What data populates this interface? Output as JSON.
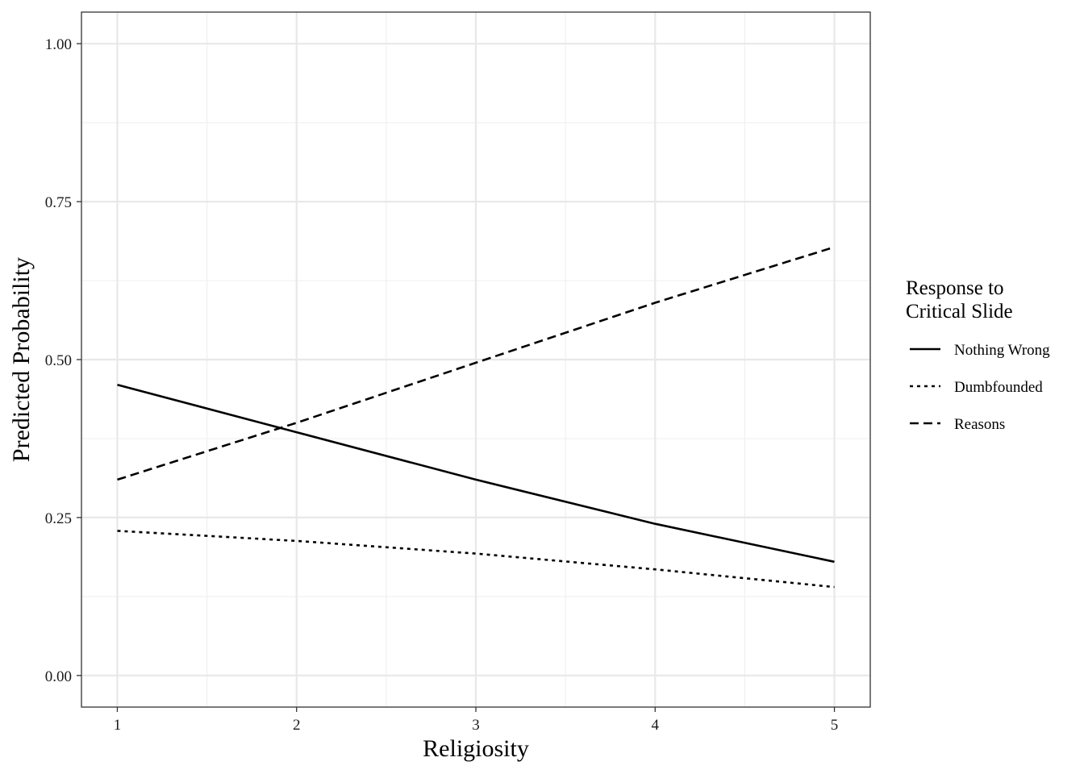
{
  "chart_data": {
    "type": "line",
    "xlabel": "Religiosity",
    "ylabel": "Predicted Probability",
    "xlim": [
      0.8,
      5.2
    ],
    "ylim": [
      -0.05,
      1.05
    ],
    "x_ticks": [
      1,
      2,
      3,
      4,
      5
    ],
    "y_ticks": [
      0,
      0.25,
      0.5,
      0.75,
      1
    ],
    "y_tick_labels": [
      "0.00",
      "0.25",
      "0.50",
      "0.75",
      "1.00"
    ],
    "x_tick_labels": [
      "1",
      "2",
      "3",
      "4",
      "5"
    ],
    "grid": true,
    "legend_position": "right",
    "legend_title": [
      "Response to",
      "Critical Slide"
    ],
    "series": [
      {
        "name": "Nothing Wrong",
        "linestyle": "solid",
        "color": "#000000",
        "x": [
          1,
          2,
          3,
          4,
          5
        ],
        "y": [
          0.46,
          0.385,
          0.31,
          0.24,
          0.18
        ]
      },
      {
        "name": "Dumbfounded",
        "linestyle": "dotted",
        "color": "#000000",
        "x": [
          1,
          2,
          3,
          4,
          5
        ],
        "y": [
          0.229,
          0.213,
          0.193,
          0.168,
          0.14
        ]
      },
      {
        "name": "Reasons",
        "linestyle": "dashed",
        "color": "#000000",
        "x": [
          1,
          2,
          3,
          4,
          5
        ],
        "y": [
          0.31,
          0.4,
          0.495,
          0.59,
          0.678
        ]
      }
    ]
  }
}
